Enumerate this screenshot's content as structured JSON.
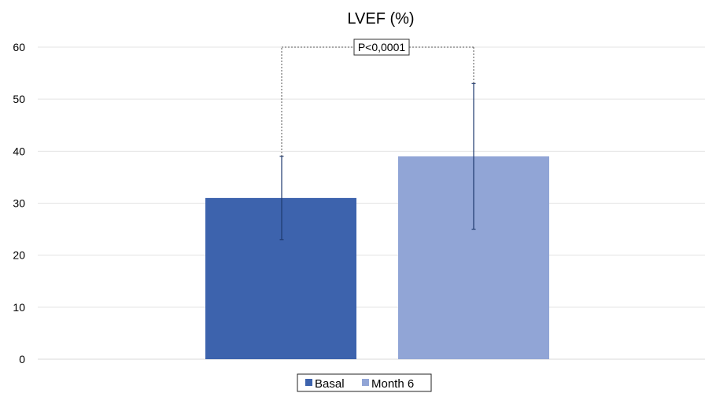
{
  "chart_data": {
    "type": "bar",
    "title": "LVEF (%)",
    "xlabel": "",
    "ylabel": "",
    "ylim": [
      0,
      60
    ],
    "yticks": [
      0,
      10,
      20,
      30,
      40,
      50,
      60
    ],
    "grid": true,
    "legend_position": "bottom",
    "series": [
      {
        "name": "Basal",
        "value": 31,
        "error_low": 23,
        "error_high": 39,
        "color": "#3d63ad"
      },
      {
        "name": "Month 6",
        "value": 39,
        "error_low": 25,
        "error_high": 53,
        "color": "#91a5d6"
      }
    ],
    "annotation": {
      "text": "P<0,0001",
      "y": 60
    }
  }
}
